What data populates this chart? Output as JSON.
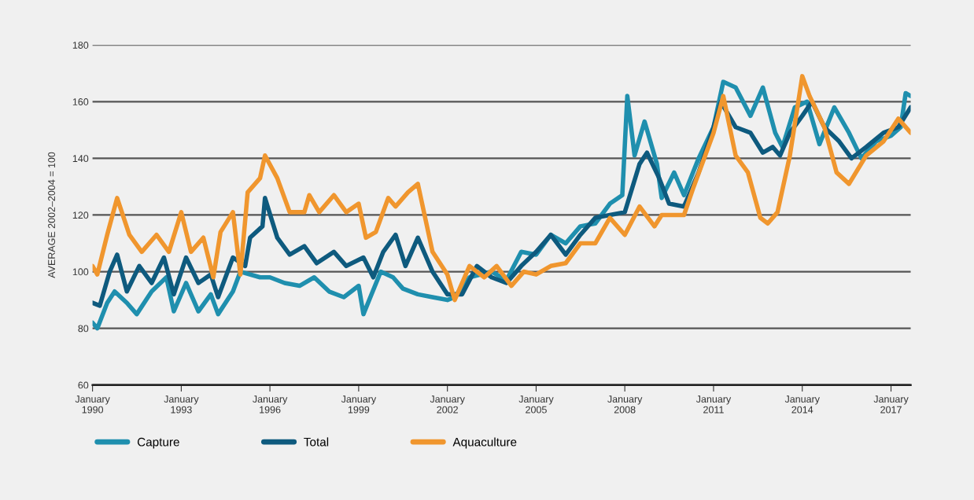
{
  "chart_data": {
    "type": "line",
    "ylabel": "AVERAGE 2002–2004 = 100",
    "xlim": [
      "1990-01",
      "2017-09"
    ],
    "ylim": [
      60,
      180
    ],
    "yticks": [
      60,
      80,
      100,
      120,
      140,
      160,
      180
    ],
    "xticks": [
      {
        "value": "1990-01",
        "label": "January\n1990"
      },
      {
        "value": "1993-01",
        "label": "January\n1993"
      },
      {
        "value": "1996-01",
        "label": "January\n1996"
      },
      {
        "value": "1999-01",
        "label": "January\n1999"
      },
      {
        "value": "2002-01",
        "label": "January\n2002"
      },
      {
        "value": "2005-01",
        "label": "January\n2005"
      },
      {
        "value": "2008-01",
        "label": "January\n2008"
      },
      {
        "value": "2011-01",
        "label": "January\n2011"
      },
      {
        "value": "2014-01",
        "label": "January\n2014"
      },
      {
        "value": "2017-01",
        "label": "January\n2017"
      }
    ],
    "grid": "y",
    "legend": "bottom",
    "marker": "none",
    "line_style": "solid",
    "series": [
      {
        "name": "Capture",
        "color": "#1f8fae",
        "x": [
          "1990-01",
          "1990-03",
          "1990-07",
          "1990-10",
          "1991-03",
          "1991-07",
          "1992-01",
          "1992-07",
          "1992-10",
          "1993-03",
          "1993-08",
          "1994-01",
          "1994-04",
          "1994-10",
          "1995-01",
          "1995-09",
          "1996-01",
          "1996-07",
          "1997-01",
          "1997-07",
          "1998-01",
          "1998-07",
          "1999-01",
          "1999-03",
          "1999-10",
          "2000-03",
          "2000-07",
          "2001-01",
          "2001-07",
          "2002-01",
          "2002-04",
          "2002-10",
          "2003-07",
          "2004-01",
          "2004-07",
          "2005-01",
          "2005-07",
          "2006-01",
          "2006-07",
          "2007-01",
          "2007-07",
          "2007-12",
          "2008-02",
          "2008-05",
          "2008-09",
          "2009-02",
          "2009-04",
          "2009-09",
          "2010-01",
          "2010-07",
          "2011-01",
          "2011-05",
          "2011-10",
          "2012-04",
          "2012-09",
          "2013-02",
          "2013-05",
          "2013-10",
          "2014-03",
          "2014-08",
          "2015-02",
          "2015-08",
          "2016-01",
          "2016-07",
          "2017-01",
          "2017-05",
          "2017-07",
          "2017-09"
        ],
        "values": [
          82,
          80,
          89,
          93,
          89,
          85,
          93,
          98,
          86,
          96,
          86,
          92,
          85,
          93,
          100,
          98,
          98,
          96,
          95,
          98,
          93,
          91,
          95,
          85,
          100,
          98,
          94,
          92,
          91,
          90,
          91,
          98,
          100,
          97,
          107,
          106,
          113,
          110,
          116,
          117,
          124,
          127,
          162,
          141,
          153,
          138,
          126,
          135,
          127,
          140,
          151,
          167,
          165,
          155,
          165,
          149,
          144,
          158,
          160,
          145,
          158,
          149,
          140,
          146,
          148,
          151,
          163,
          162
        ]
      },
      {
        "name": "Total",
        "color": "#0e5a7e",
        "x": [
          "1990-01",
          "1990-04",
          "1990-08",
          "1990-11",
          "1991-03",
          "1991-08",
          "1992-01",
          "1992-06",
          "1992-10",
          "1993-03",
          "1993-08",
          "1994-01",
          "1994-04",
          "1994-10",
          "1995-03",
          "1995-05",
          "1995-10",
          "1995-11",
          "1996-04",
          "1996-09",
          "1997-03",
          "1997-08",
          "1998-03",
          "1998-08",
          "1999-03",
          "1999-07",
          "1999-11",
          "2000-04",
          "2000-08",
          "2001-01",
          "2001-07",
          "2002-01",
          "2002-07",
          "2003-01",
          "2003-07",
          "2004-01",
          "2004-07",
          "2005-01",
          "2005-07",
          "2006-01",
          "2006-07",
          "2007-01",
          "2007-07",
          "2008-01",
          "2008-07",
          "2008-10",
          "2009-03",
          "2009-07",
          "2010-01",
          "2010-07",
          "2011-01",
          "2011-04",
          "2011-10",
          "2012-04",
          "2012-09",
          "2013-01",
          "2013-04",
          "2013-08",
          "2014-01",
          "2014-05",
          "2014-10",
          "2015-04",
          "2015-09",
          "2016-03",
          "2016-10",
          "2017-04",
          "2017-09"
        ],
        "values": [
          89,
          88,
          100,
          106,
          93,
          102,
          96,
          105,
          92,
          105,
          96,
          99,
          91,
          105,
          102,
          112,
          116,
          126,
          112,
          106,
          109,
          103,
          107,
          102,
          105,
          98,
          107,
          113,
          102,
          112,
          100,
          92,
          92,
          102,
          98,
          96,
          102,
          107,
          113,
          106,
          113,
          119,
          120,
          121,
          138,
          142,
          133,
          124,
          123,
          135,
          151,
          160,
          151,
          149,
          142,
          144,
          141,
          149,
          155,
          160,
          151,
          146,
          140,
          144,
          149,
          151,
          158
        ]
      },
      {
        "name": "Aquaculture",
        "color": "#f0962e",
        "x": [
          "1990-01",
          "1990-03",
          "1990-07",
          "1990-11",
          "1991-04",
          "1991-09",
          "1992-03",
          "1992-08",
          "1993-01",
          "1993-05",
          "1993-10",
          "1994-02",
          "1994-05",
          "1994-10",
          "1995-01",
          "1995-04",
          "1995-09",
          "1995-11",
          "1996-04",
          "1996-09",
          "1997-03",
          "1997-05",
          "1997-09",
          "1998-03",
          "1998-08",
          "1999-01",
          "1999-04",
          "1999-08",
          "2000-01",
          "2000-04",
          "2000-09",
          "2001-01",
          "2001-07",
          "2002-01",
          "2002-04",
          "2002-10",
          "2003-04",
          "2003-09",
          "2004-03",
          "2004-08",
          "2005-01",
          "2005-07",
          "2006-01",
          "2006-07",
          "2007-01",
          "2007-07",
          "2008-01",
          "2008-07",
          "2009-01",
          "2009-04",
          "2010-01",
          "2010-05",
          "2011-01",
          "2011-05",
          "2011-10",
          "2012-03",
          "2012-08",
          "2012-11",
          "2013-03",
          "2013-08",
          "2014-01",
          "2014-04",
          "2014-10",
          "2015-03",
          "2015-08",
          "2016-03",
          "2016-10",
          "2017-04",
          "2017-09"
        ],
        "values": [
          102,
          99,
          113,
          126,
          113,
          107,
          113,
          107,
          121,
          107,
          112,
          98,
          114,
          121,
          99,
          128,
          133,
          141,
          133,
          121,
          121,
          127,
          121,
          127,
          121,
          124,
          112,
          114,
          126,
          123,
          128,
          131,
          107,
          99,
          90,
          102,
          98,
          102,
          95,
          100,
          99,
          102,
          103,
          110,
          110,
          119,
          113,
          123,
          116,
          120,
          120,
          130,
          149,
          162,
          141,
          135,
          119,
          117,
          121,
          141,
          169,
          162,
          151,
          135,
          131,
          141,
          146,
          154,
          149
        ]
      }
    ]
  }
}
